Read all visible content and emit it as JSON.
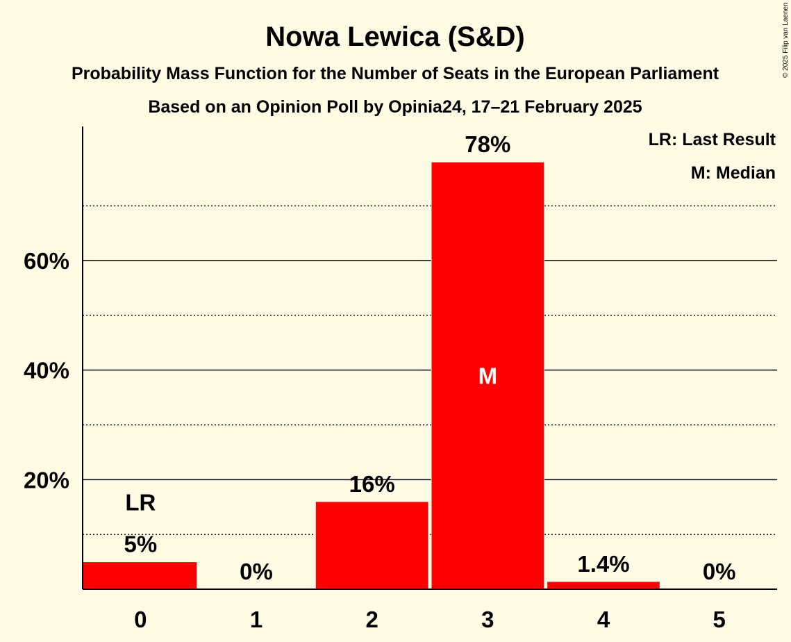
{
  "chart_data": {
    "type": "bar",
    "title": "Nowa Lewica (S&D)",
    "subtitle": "Probability Mass Function for the Number of Seats in the European Parliament",
    "subtitle2": "Based on an Opinion Poll by Opinia24, 17–21 February 2025",
    "categories": [
      "0",
      "1",
      "2",
      "3",
      "4",
      "5"
    ],
    "values": [
      5,
      0,
      16,
      78,
      1.4,
      0
    ],
    "value_labels": [
      "5%",
      "0%",
      "16%",
      "78%",
      "1.4%",
      "0%"
    ],
    "ylim": [
      0,
      84
    ],
    "yticks": [
      20,
      40,
      60
    ],
    "ytick_labels": [
      "20%",
      "40%",
      "60%"
    ],
    "minor_gridlines": [
      10,
      30,
      50,
      70
    ],
    "last_result_index": 0,
    "last_result_label": "LR",
    "median_index": 3,
    "median_label": "M",
    "legend": [
      "LR: Last Result",
      "M: Median"
    ],
    "bar_color": "#ff0000",
    "copyright": "© 2025 Filip van Laenen"
  }
}
